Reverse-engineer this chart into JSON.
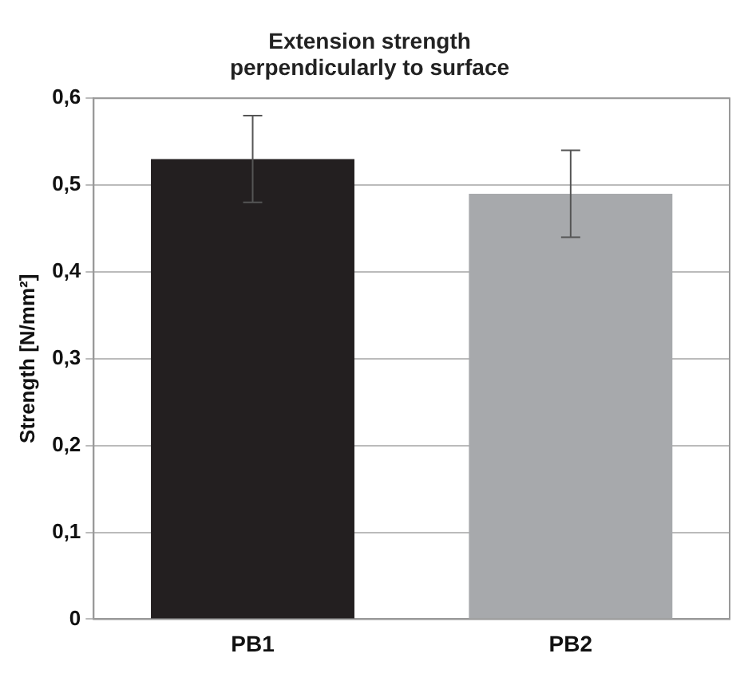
{
  "chart_data": {
    "type": "bar",
    "title": [
      "Extension strength",
      "perpendicularly to surface"
    ],
    "ylabel": "Strength [N/mm²]",
    "categories": [
      "PB1",
      "PB2"
    ],
    "values": [
      0.53,
      0.49
    ],
    "colors": [
      "#231f20",
      "#a7a9ac"
    ],
    "errors": [
      0.05,
      0.05
    ],
    "ylim": [
      0,
      0.6
    ],
    "yticks": [
      {
        "value": 0,
        "label": "0"
      },
      {
        "value": 0.1,
        "label": "0,1"
      },
      {
        "value": 0.2,
        "label": "0,2"
      },
      {
        "value": 0.3,
        "label": "0,3"
      },
      {
        "value": 0.4,
        "label": "0,4"
      },
      {
        "value": 0.5,
        "label": "0,5"
      },
      {
        "value": 0.6,
        "label": "0,6"
      }
    ],
    "grid": "y",
    "legend": false
  }
}
